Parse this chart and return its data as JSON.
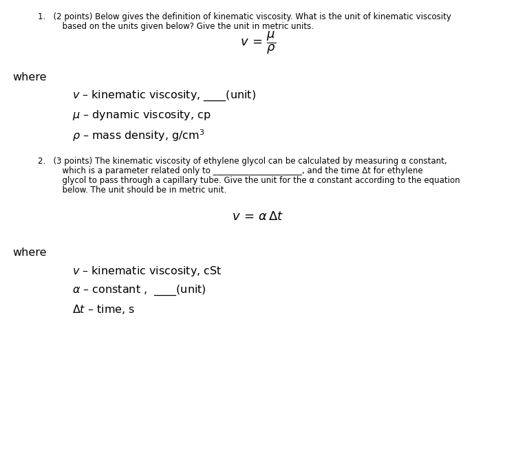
{
  "bg_color": "#ffffff",
  "text_color": "#000000",
  "fig_width": 7.5,
  "fig_height": 6.53,
  "dpi": 100,
  "q1_line1a": "1.   (2 points) Below gives the definition of kinematic viscosity. What is the unit of kinematic viscosity",
  "q1_line1b": "      based on the units given below? Give the unit in metric units.",
  "q1_where": "where",
  "q1_def1": "$v$ – kinematic viscosity, ____(unit)",
  "q1_def2": "$\\mu$ – dynamic viscosity, cp",
  "q1_def3": "$\\rho$ – mass density, g/cm$^3$",
  "q2_line1a": "2.   (3 points) The kinematic viscosity of ethylene glycol can be calculated by measuring α constant,",
  "q2_line1b": "      which is a parameter related only to ______________________, and the time Δt for ethylene",
  "q2_line1c": "      glycol to pass through a capillary tube. Give the unit for the α constant according to the equation",
  "q2_line1d": "      below. The unit should be in metric unit.",
  "q2_where": "where",
  "q2_def1": "$v$ – kinematic viscosity, cSt",
  "q2_def2": "$\\alpha$ – constant ,  ____(unit)",
  "q2_def3": "$\\Delta t$ – time, s",
  "body_fs": 8.5,
  "def_fs": 11.5,
  "where_fs": 11.5,
  "formula_fs": 13
}
